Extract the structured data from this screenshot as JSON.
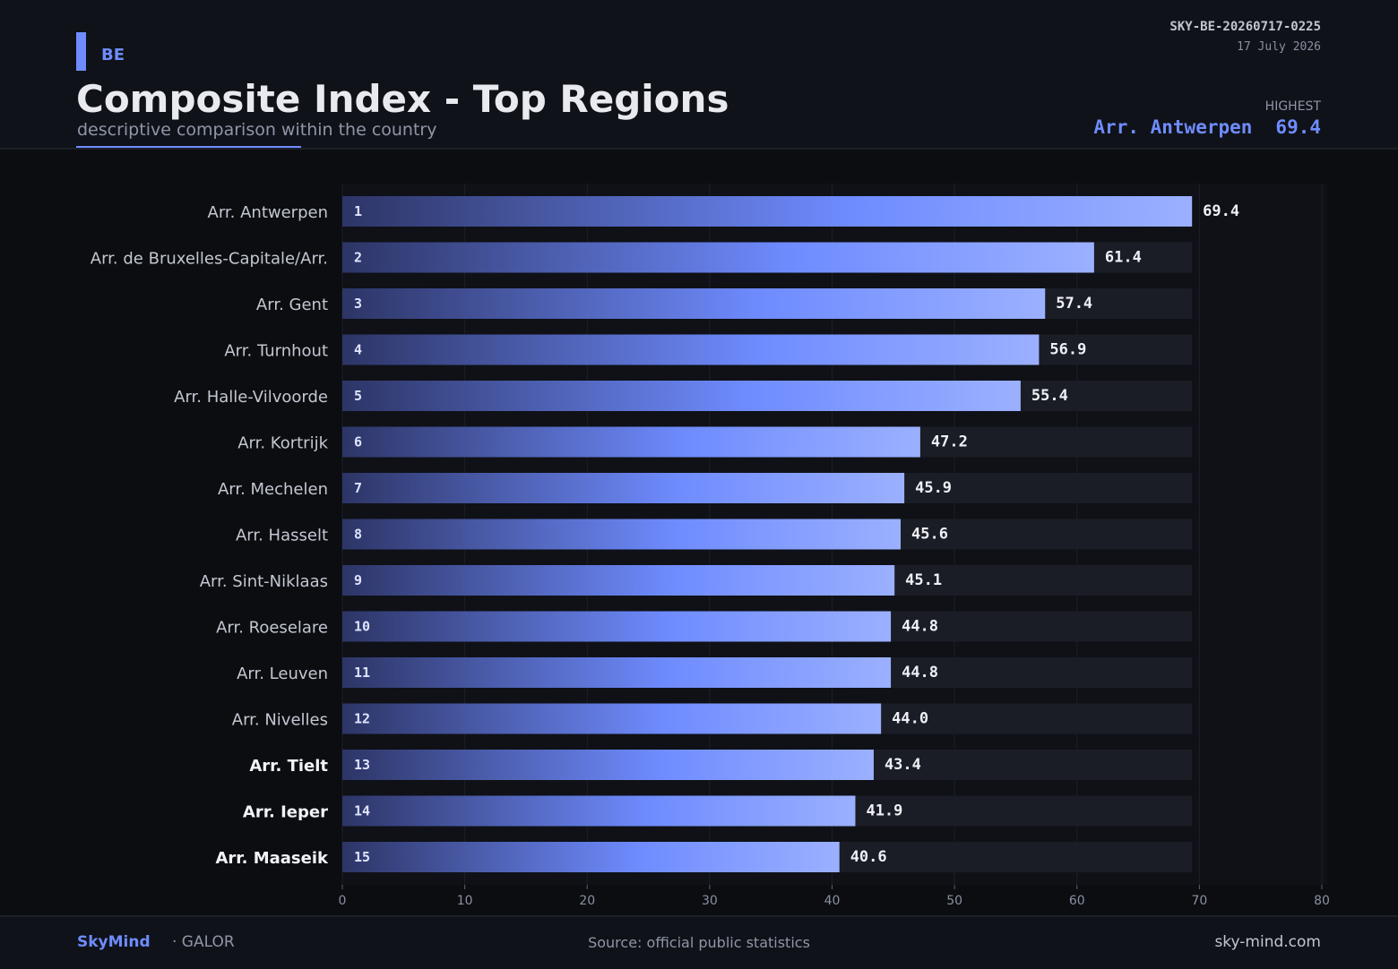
{
  "header": {
    "country": "BE",
    "title": "Composite Index - Top Regions",
    "subtitle": "descriptive comparison within the country",
    "report_id": "SKY-BE-20260717-0225",
    "date": "17 July 2026",
    "highest_label": "HIGHEST",
    "highest_region": "Arr. Antwerpen",
    "highest_value": "69.4"
  },
  "footer": {
    "brand": "SkyMind",
    "brand_sub": "· GALOR",
    "source": "Source: official public statistics",
    "site": "sky-mind.com"
  },
  "colors": {
    "accent": "#6f8cff",
    "background": "#0b0d11",
    "panel": "#0f1218",
    "track": "#1a1d25",
    "bar_dark": "#2d3566",
    "bar_light": "#9bb0ff"
  },
  "chart_data": {
    "type": "bar",
    "orientation": "horizontal",
    "title": "",
    "xlabel": "",
    "ylabel": "",
    "xlim": [
      0,
      80
    ],
    "xticks": [
      0,
      10,
      20,
      30,
      40,
      50,
      60,
      70,
      80
    ],
    "grid": true,
    "track_max": 69.4,
    "categories": [
      "Arr. Antwerpen",
      "Arr. de Bruxelles-Capitale/Arr.",
      "Arr. Gent",
      "Arr. Turnhout",
      "Arr. Halle-Vilvoorde",
      "Arr. Kortrijk",
      "Arr. Mechelen",
      "Arr. Hasselt",
      "Arr. Sint-Niklaas",
      "Arr. Roeselare",
      "Arr. Leuven",
      "Arr. Nivelles",
      "Arr. Tielt",
      "Arr. Ieper",
      "Arr. Maaseik"
    ],
    "ranks": [
      "1",
      "2",
      "3",
      "4",
      "5",
      "6",
      "7",
      "8",
      "9",
      "10",
      "11",
      "12",
      "13",
      "14",
      "15"
    ],
    "values": [
      69.4,
      61.4,
      57.4,
      56.9,
      55.4,
      47.2,
      45.9,
      45.6,
      45.1,
      44.8,
      44.8,
      44.0,
      43.4,
      41.9,
      40.6
    ],
    "value_labels": [
      "69.4",
      "61.4",
      "57.4",
      "56.9",
      "55.4",
      "47.2",
      "45.9",
      "45.6",
      "45.1",
      "44.8",
      "44.8",
      "44.0",
      "43.4",
      "41.9",
      "40.6"
    ],
    "emphasized_categories": [
      "Arr. Tielt",
      "Arr. Ieper",
      "Arr. Maaseik"
    ]
  }
}
